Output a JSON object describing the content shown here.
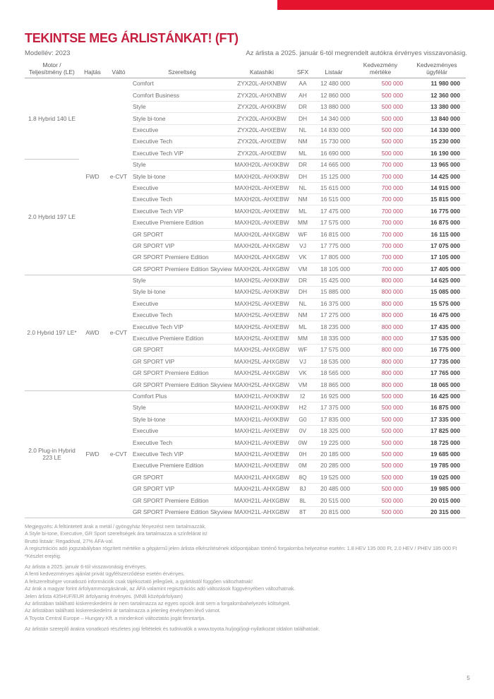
{
  "page": {
    "title": "TEKINTSE MEG ÁRLISTÁNKAT! (FT)",
    "model_year": "Modellév: 2023",
    "validity_note": "Az árlista a 2025. január 6-tól megrendelt autókra érvényes visszavonásig.",
    "page_number": "5",
    "accent_bar_color": "#e5132d",
    "title_color": "#c41f3f",
    "discount_text_color": "#bb4a67"
  },
  "table": {
    "headers": {
      "motor": "Motor /\nTeljesítmény (LE)",
      "drive": "Hajtás",
      "transmission": "Váltó",
      "grade": "Szereltség",
      "katashiki": "Katashiki",
      "sfx": "SFX",
      "list_price": "Listaár",
      "discount": "Kedvezmény\nmértéke",
      "customer_price": "Kedvezményes\nügyfélár"
    },
    "sections": [
      {
        "drive": "FWD",
        "transmission": "e-CVT",
        "motor_groups": [
          {
            "motor": "1.8 Hybrid 140 LE",
            "rows": [
              {
                "grade": "Comfort",
                "katashiki": "ZYX20L-AHXNBW",
                "sfx": "AA",
                "list_price": "12 480 000",
                "discount": "500 000",
                "customer_price": "11 980 000"
              },
              {
                "grade": "Comfort Business",
                "katashiki": "ZYX20L-AHXNBW",
                "sfx": "AH",
                "list_price": "12 860 000",
                "discount": "500 000",
                "customer_price": "12 360 000"
              },
              {
                "grade": "Style",
                "katashiki": "ZYX20L-AHXKBW",
                "sfx": "DR",
                "list_price": "13 880 000",
                "discount": "500 000",
                "customer_price": "13 380 000"
              },
              {
                "grade": "Style bi-tone",
                "katashiki": "ZYX20L-AHXKBW",
                "sfx": "DH",
                "list_price": "14 340 000",
                "discount": "500 000",
                "customer_price": "13 840 000"
              },
              {
                "grade": "Executive",
                "katashiki": "ZYX20L-AHXEBW",
                "sfx": "NL",
                "list_price": "14 830 000",
                "discount": "500 000",
                "customer_price": "14 330 000"
              },
              {
                "grade": "Executive Tech",
                "katashiki": "ZYX20L-AHXEBW",
                "sfx": "NM",
                "list_price": "15 730 000",
                "discount": "500 000",
                "customer_price": "15 230 000"
              },
              {
                "grade": "Executive Tech VIP",
                "katashiki": "ZYX20L-AHXEBW",
                "sfx": "ML",
                "list_price": "16 690 000",
                "discount": "500 000",
                "customer_price": "16 190 000"
              }
            ]
          },
          {
            "motor": "2.0 Hybrid 197 LE",
            "rows": [
              {
                "grade": "Style",
                "katashiki": "MAXH20L-AHXKBW",
                "sfx": "DR",
                "list_price": "14 665 000",
                "discount": "700 000",
                "customer_price": "13 965 000"
              },
              {
                "grade": "Style bi-tone",
                "katashiki": "MAXH20L-AHXKBW",
                "sfx": "DH",
                "list_price": "15 125 000",
                "discount": "700 000",
                "customer_price": "14 425 000"
              },
              {
                "grade": "Executive",
                "katashiki": "MAXH20L-AHXEBW",
                "sfx": "NL",
                "list_price": "15 615 000",
                "discount": "700 000",
                "customer_price": "14 915 000"
              },
              {
                "grade": "Executive Tech",
                "katashiki": "MAXH20L-AHXEBW",
                "sfx": "NM",
                "list_price": "16 515 000",
                "discount": "700 000",
                "customer_price": "15 815 000"
              },
              {
                "grade": "Executive Tech VIP",
                "katashiki": "MAXH20L-AHXEBW",
                "sfx": "ML",
                "list_price": "17 475 000",
                "discount": "700 000",
                "customer_price": "16 775 000"
              },
              {
                "grade": "Executive Premiere Edition",
                "katashiki": "MAXH20L-AHXEBW",
                "sfx": "MM",
                "list_price": "17 575 000",
                "discount": "700 000",
                "customer_price": "16 875 000"
              },
              {
                "grade": "GR SPORT",
                "katashiki": "MAXH20L-AHXGBW",
                "sfx": "WF",
                "list_price": "16 815 000",
                "discount": "700 000",
                "customer_price": "16 115 000"
              },
              {
                "grade": "GR SPORT VIP",
                "katashiki": "MAXH20L-AHXGBW",
                "sfx": "VJ",
                "list_price": "17 775 000",
                "discount": "700 000",
                "customer_price": "17 075 000"
              },
              {
                "grade": "GR SPORT Premiere Edition",
                "katashiki": "MAXH20L-AHXGBW",
                "sfx": "VK",
                "list_price": "17 805 000",
                "discount": "700 000",
                "customer_price": "17 105 000"
              },
              {
                "grade": "GR SPORT Premiere Edition Skyview",
                "katashiki": "MAXH20L-AHXGBW",
                "sfx": "VM",
                "list_price": "18 105 000",
                "discount": "700 000",
                "customer_price": "17 405 000"
              }
            ]
          }
        ]
      },
      {
        "drive": "AWD",
        "transmission": "e-CVT",
        "motor_groups": [
          {
            "motor": "2.0 Hybrid 197 LE*",
            "rows": [
              {
                "grade": "Style",
                "katashiki": "MAXH25L-AHXKBW",
                "sfx": "DR",
                "list_price": "15 425 000",
                "discount": "800 000",
                "customer_price": "14 625 000"
              },
              {
                "grade": "Style bi-tone",
                "katashiki": "MAXH25L-AHXKBW",
                "sfx": "DH",
                "list_price": "15 885 000",
                "discount": "800 000",
                "customer_price": "15 085 000"
              },
              {
                "grade": "Executive",
                "katashiki": "MAXH25L-AHXEBW",
                "sfx": "NL",
                "list_price": "16 375 000",
                "discount": "800 000",
                "customer_price": "15 575 000"
              },
              {
                "grade": "Executive Tech",
                "katashiki": "MAXH25L-AHXEBW",
                "sfx": "NM",
                "list_price": "17 275 000",
                "discount": "800 000",
                "customer_price": "16 475 000"
              },
              {
                "grade": "Executive Tech VIP",
                "katashiki": "MAXH25L-AHXEBW",
                "sfx": "ML",
                "list_price": "18 235 000",
                "discount": "800 000",
                "customer_price": "17 435 000"
              },
              {
                "grade": "Executive Premiere Edition",
                "katashiki": "MAXH25L-AHXEBW",
                "sfx": "MM",
                "list_price": "18 335 000",
                "discount": "800 000",
                "customer_price": "17 535 000"
              },
              {
                "grade": "GR SPORT",
                "katashiki": "MAXH25L-AHXGBW",
                "sfx": "WF",
                "list_price": "17 575 000",
                "discount": "800 000",
                "customer_price": "16 775 000"
              },
              {
                "grade": "GR SPORT VIP",
                "katashiki": "MAXH25L-AHXGBW",
                "sfx": "VJ",
                "list_price": "18 535 000",
                "discount": "800 000",
                "customer_price": "17 735 000"
              },
              {
                "grade": "GR SPORT Premiere Edition",
                "katashiki": "MAXH25L-AHXGBW",
                "sfx": "VK",
                "list_price": "18 565 000",
                "discount": "800 000",
                "customer_price": "17 765 000"
              },
              {
                "grade": "GR SPORT Premiere Edition Skyview",
                "katashiki": "MAXH25L-AHXGBW",
                "sfx": "VM",
                "list_price": "18 865 000",
                "discount": "800 000",
                "customer_price": "18 065 000"
              }
            ]
          }
        ]
      },
      {
        "drive": "FWD",
        "transmission": "e-CVT",
        "motor_groups": [
          {
            "motor": "2.0 Plug-in Hybrid 223 LE",
            "rows": [
              {
                "grade": "Comfort Plus",
                "katashiki": "MAXH21L-AHXKBW",
                "sfx": "I2",
                "list_price": "16 925 000",
                "discount": "500 000",
                "customer_price": "16 425 000"
              },
              {
                "grade": "Style",
                "katashiki": "MAXH21L-AHXKBW",
                "sfx": "H2",
                "list_price": "17 375 000",
                "discount": "500 000",
                "customer_price": "16 875 000"
              },
              {
                "grade": "Style bi-tone",
                "katashiki": "MAXH21L-AHXKBW",
                "sfx": "G0",
                "list_price": "17 835 000",
                "discount": "500 000",
                "customer_price": "17 335 000"
              },
              {
                "grade": "Executive",
                "katashiki": "MAXH21L-AHXEBW",
                "sfx": "0V",
                "list_price": "18 325 000",
                "discount": "500 000",
                "customer_price": "17 825 000"
              },
              {
                "grade": "Executive Tech",
                "katashiki": "MAXH21L-AHXEBW",
                "sfx": "0W",
                "list_price": "19 225 000",
                "discount": "500 000",
                "customer_price": "18 725 000"
              },
              {
                "grade": "Executive Tech VIP",
                "katashiki": "MAXH21L-AHXEBW",
                "sfx": "0H",
                "list_price": "20 185 000",
                "discount": "500 000",
                "customer_price": "19 685 000"
              },
              {
                "grade": "Executive Premiere Edition",
                "katashiki": "MAXH21L-AHXEBW",
                "sfx": "0M",
                "list_price": "20 285 000",
                "discount": "500 000",
                "customer_price": "19 785 000"
              },
              {
                "grade": "GR SPORT",
                "katashiki": "MAXH21L-AHXGBW",
                "sfx": "8Q",
                "list_price": "19 525 000",
                "discount": "500 000",
                "customer_price": "19 025 000"
              },
              {
                "grade": "GR SPORT VIP",
                "katashiki": "MAXH21L-AHXGBW",
                "sfx": "8J",
                "list_price": "20 485 000",
                "discount": "500 000",
                "customer_price": "19 985 000"
              },
              {
                "grade": "GR SPORT Premiere Edition",
                "katashiki": "MAXH21L-AHXGBW",
                "sfx": "8L",
                "list_price": "20 515 000",
                "discount": "500 000",
                "customer_price": "20 015 000"
              },
              {
                "grade": "GR SPORT Premiere Edition Skyview",
                "katashiki": "MAXH21L-AHXGBW",
                "sfx": "8T",
                "list_price": "20 815 000",
                "discount": "500 000",
                "customer_price": "20 315 000"
              }
            ]
          }
        ]
      }
    ]
  },
  "notes": {
    "blocks": [
      [
        "Megjegyzés: A feltüntetett árak a metál / gyöngyház fényezést nem tartalmazzák.",
        "A Style bi-tone, Executive, GR Sport szereltségek ára tartalmazza a színfelárat is!",
        "Bruttó listaár: Regadóval, 27% ÁFA-val.",
        "A regisztrációs adó jogszabályban rögzített mértéke a gépjármű jelen árlista elkészítésének időpontjában történő forgalomba helyezése esetén: 1.8 HEV 135 000 Ft, 2.0 HEV / PHEV 185 000 Ft",
        "*Készlet erejéig."
      ],
      [
        "Az árlista a 2025. január 6-tól visszavonásig érvényes.",
        "A fenti kedvezményes ajánlat privát ügyfélszerződése esetén érvényes.",
        "A felszereltségre vonatkozó információk csak tájékoztató jellegűek, a gyártástól függően változhatnak!",
        "Az árak a magyar forint árfolyammozgásának, az ÁFA valamint regisztrációs adó változások függvényében változhatnak.",
        "Jelen árlista 435HUF/EUR árfolyamig érvényes. (MNB középárfolyam)",
        "Az árlistában található kiskereskedelmi ár nem tartalmazza az egyes opciók árát sem a forgalombahelyezés költségeit.",
        "Az árlistában található kiskereskedelmi ár tartalmazza a jelenleg érvényben lévő vámot.",
        "A Toyota Central Europe – Hungary Kft. a mindenkori változtatás jogát fenntartja."
      ],
      [
        "Az árlistán szereplő árakra vonatkozó részletes jogi feltételek és tudnivalók a www.toyota.hu/jogi/jogi-nyilatkozat oldalon találhatóak."
      ]
    ]
  }
}
